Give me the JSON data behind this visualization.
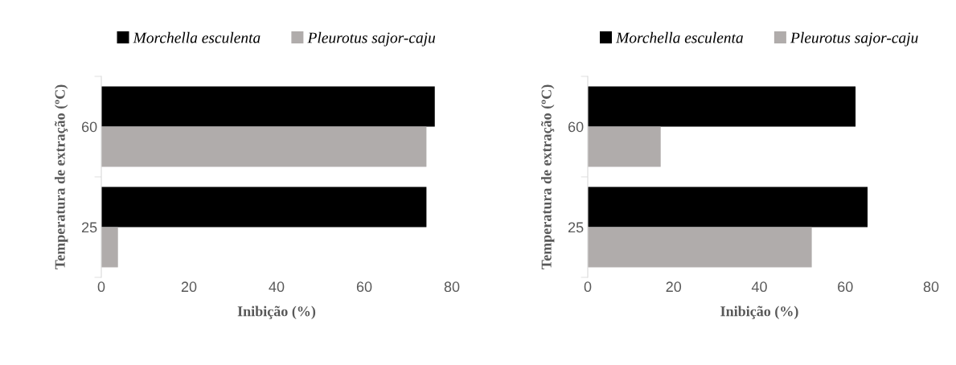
{
  "chart_data": [
    {
      "type": "bar",
      "orientation": "horizontal",
      "categories": [
        "60",
        "25"
      ],
      "xlabel": "Inibição (%)",
      "ylabel": "Temperatura de extração (ºC)",
      "xlim": [
        0,
        80
      ],
      "xticks": [
        0,
        20,
        40,
        60,
        80
      ],
      "legend": "top",
      "grid": false,
      "series": [
        {
          "name": "Morchella esculenta",
          "color": "#000000",
          "values": [
            76.1,
            74.2
          ]
        },
        {
          "name": "Pleurotus sajor-caju",
          "color": "#b0acab",
          "values": [
            74.2,
            3.8
          ]
        }
      ]
    },
    {
      "type": "bar",
      "orientation": "horizontal",
      "categories": [
        "60",
        "25"
      ],
      "xlabel": "Inibição (%)",
      "ylabel": "Temperatura de extração (ºC)",
      "xlim": [
        0,
        80
      ],
      "xticks": [
        0,
        20,
        40,
        60,
        80
      ],
      "legend": "top",
      "grid": false,
      "series": [
        {
          "name": "Morchella esculenta",
          "color": "#000000",
          "values": [
            62.4,
            65.2
          ]
        },
        {
          "name": "Pleurotus sajor-caju",
          "color": "#b0acab",
          "values": [
            17.0,
            52.2
          ]
        }
      ]
    }
  ]
}
